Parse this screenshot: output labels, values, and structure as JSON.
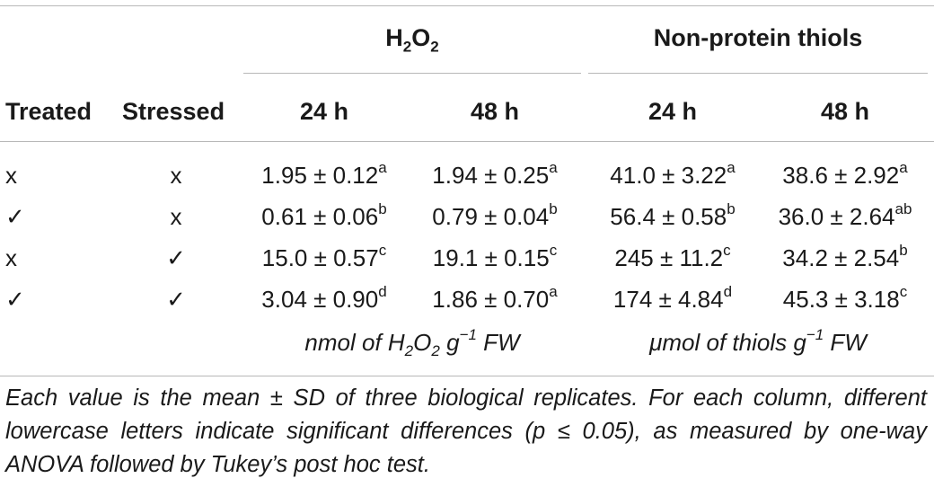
{
  "header": {
    "group1_main": "H",
    "group1_sub1": "2",
    "group1_mid": "O",
    "group1_sub2": "2",
    "group2": "Non-protein thiols",
    "col_treated": "Treated",
    "col_stressed": "Stressed",
    "h24a": "24 h",
    "h48a": "48 h",
    "h24b": "24 h",
    "h48b": "48 h"
  },
  "rows": [
    {
      "treated": "x",
      "stressed": "x",
      "h2o2_24": "1.95 ± 0.12",
      "h2o2_24_sup": "a",
      "h2o2_48": "1.94 ± 0.25",
      "h2o2_48_sup": "a",
      "th_24": "41.0 ± 3.22",
      "th_24_sup": "a",
      "th_48": "38.6 ± 2.92",
      "th_48_sup": "a"
    },
    {
      "treated": "✓",
      "stressed": "x",
      "h2o2_24": "0.61 ± 0.06",
      "h2o2_24_sup": "b",
      "h2o2_48": "0.79 ± 0.04",
      "h2o2_48_sup": "b",
      "th_24": "56.4 ± 0.58",
      "th_24_sup": "b",
      "th_48": "36.0 ± 2.64",
      "th_48_sup": "ab"
    },
    {
      "treated": "x",
      "stressed": "✓",
      "h2o2_24": "15.0 ± 0.57",
      "h2o2_24_sup": "c",
      "h2o2_48": "19.1 ± 0.15",
      "h2o2_48_sup": "c",
      "th_24": "245 ± 11.2",
      "th_24_sup": "c",
      "th_48": "34.2 ± 2.54",
      "th_48_sup": "b"
    },
    {
      "treated": "✓",
      "stressed": "✓",
      "h2o2_24": "3.04 ± 0.90",
      "h2o2_24_sup": "d",
      "h2o2_48": "1.86 ± 0.70",
      "h2o2_48_sup": "a",
      "th_24": "174 ± 4.84",
      "th_24_sup": "d",
      "th_48": "45.3 ± 3.18",
      "th_48_sup": "c"
    }
  ],
  "units": {
    "u1_a": "nmol of H",
    "u1_sub1": "2",
    "u1_b": "O",
    "u1_sub2": "2",
    "u1_c": " g",
    "u1_sup": "−1",
    "u1_d": " FW",
    "u2_a": "μmol of thiols g",
    "u2_sup": "−1",
    "u2_b": " FW"
  },
  "footnote": "Each value is the mean ± SD of three biological replicates. For each column, different lowercase letters indicate significant differences (p ≤ 0.05), as measured by one-way ANOVA followed by Tukey’s post hoc test."
}
